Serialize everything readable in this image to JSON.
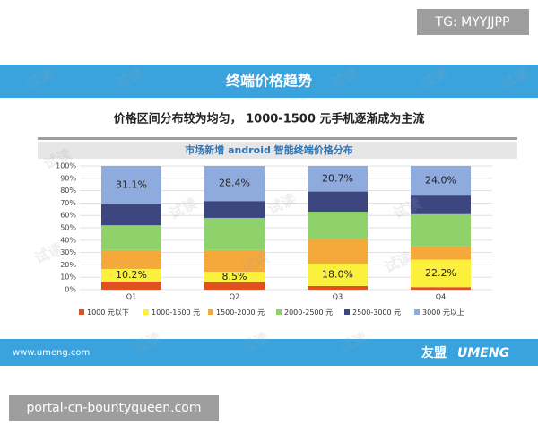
{
  "tag": "TG: MYYJJPP",
  "slide": {
    "title": "终端价格趋势",
    "subtitle": "价格区间分布较为均匀， 1000-1500 元手机逐渐成为主流",
    "footer_url": "www.umeng.com",
    "brand": "友盟",
    "brand_en": "UMENG"
  },
  "watermark": "试读",
  "footer_site": "portal-cn-bountyqueen.com",
  "chart_data": {
    "type": "stacked_bar",
    "title": "市场新增 android 智能终端价格分布",
    "categories": [
      "Q1",
      "Q2",
      "Q3",
      "Q4"
    ],
    "series": [
      {
        "name": "1000 元以下",
        "color": "#e0511f",
        "values": [
          6.5,
          6,
          3,
          2
        ]
      },
      {
        "name": "1000-1500 元",
        "color": "#fbf13c",
        "values": [
          10.2,
          8.5,
          18.0,
          22.2
        ],
        "value_labels": [
          "10.2%",
          "8.5%",
          "18.0%",
          "22.2%"
        ]
      },
      {
        "name": "1500-2000 元",
        "color": "#f5a93a",
        "values": [
          15.3,
          17.5,
          20,
          10.8
        ]
      },
      {
        "name": "2000-2500 元",
        "color": "#8fd16a",
        "values": [
          20,
          26,
          22,
          26
        ]
      },
      {
        "name": "2500-3000 元",
        "color": "#3c4780",
        "values": [
          16.9,
          13.6,
          16.3,
          15
        ]
      },
      {
        "name": "3000 元以上",
        "color": "#8faadc",
        "values": [
          31.1,
          28.4,
          20.7,
          24.0
        ],
        "value_labels": [
          "31.1%",
          "28.4%",
          "20.7%",
          "24.0%"
        ]
      }
    ],
    "ylim": [
      0,
      100
    ],
    "yticks": [
      {
        "value": 0,
        "label": "0%"
      },
      {
        "value": 10,
        "label": "10%"
      },
      {
        "value": 20,
        "label": "20%"
      },
      {
        "value": 30,
        "label": "30%"
      },
      {
        "value": 40,
        "label": "40%"
      },
      {
        "value": 50,
        "label": "50%"
      },
      {
        "value": 60,
        "label": "60%"
      },
      {
        "value": 70,
        "label": "70%"
      },
      {
        "value": 80,
        "label": "80%"
      },
      {
        "value": 90,
        "label": "90%"
      },
      {
        "value": 100,
        "label": "100%"
      }
    ],
    "grid": true
  }
}
